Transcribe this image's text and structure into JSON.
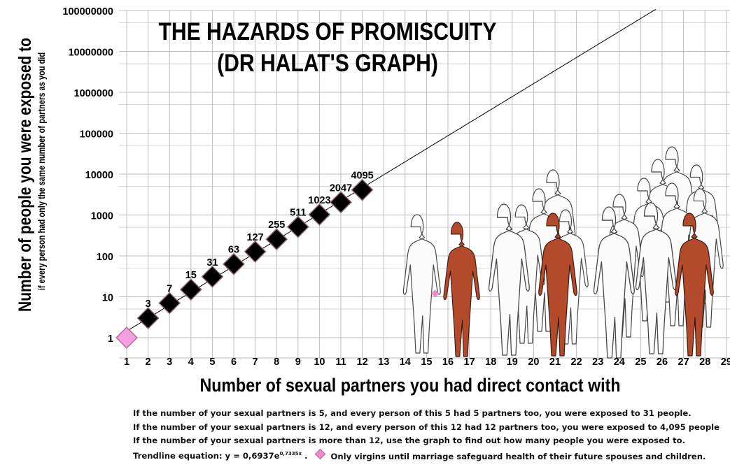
{
  "chart_data": {
    "type": "scatter",
    "title_lines": [
      "THE HAZARDS OF PROMISCUITY",
      "(DR HALAT'S GRAPH)"
    ],
    "xlabel": "Number of sexual partners you had direct contact with",
    "ylabel_main": "Number of people you were exposed to",
    "ylabel_sub": "if every person had only  the same number of partners as you did",
    "x_ticks": [
      1,
      2,
      3,
      4,
      5,
      6,
      7,
      8,
      9,
      10,
      11,
      12,
      13,
      14,
      15,
      16,
      17,
      18,
      19,
      20,
      21,
      22,
      23,
      24,
      25,
      26,
      27,
      28,
      29
    ],
    "y_ticks": [
      "1",
      "10",
      "100",
      "1000",
      "10000",
      "100000",
      "1000000",
      "10000000",
      "100000000"
    ],
    "y_scale": "log",
    "xlim": [
      1,
      29
    ],
    "ylim": [
      1,
      100000000
    ],
    "grid": true,
    "points": [
      {
        "x": 1,
        "y": 1,
        "label": ""
      },
      {
        "x": 2,
        "y": 3,
        "label": "3"
      },
      {
        "x": 3,
        "y": 7,
        "label": "7"
      },
      {
        "x": 4,
        "y": 15,
        "label": "15"
      },
      {
        "x": 5,
        "y": 31,
        "label": "31"
      },
      {
        "x": 6,
        "y": 63,
        "label": "63"
      },
      {
        "x": 7,
        "y": 127,
        "label": "127"
      },
      {
        "x": 8,
        "y": 255,
        "label": "255"
      },
      {
        "x": 9,
        "y": 511,
        "label": "511"
      },
      {
        "x": 10,
        "y": 1023,
        "label": "1023"
      },
      {
        "x": 11,
        "y": 2047,
        "label": "2047"
      },
      {
        "x": 12,
        "y": 4095,
        "label": "4095"
      }
    ],
    "extra_marker": {
      "x": 15.4,
      "y": 12
    },
    "trendline": {
      "a": 0.6937,
      "b": 0.7335,
      "type": "exponential"
    },
    "colors": {
      "point": "#000000",
      "first_point": "#f4a0e0",
      "grid": "#bdbdbd",
      "figure_red": "#b44a2c"
    }
  },
  "notes": [
    "If the number of your sexual partners is 5, and every person of this 5 had 5 partners too, you were exposed to 31 people.",
    "If the number of your sexual partners is 12, and every person of this 12  had 12 partners too, you were exposed to 4,095 people",
    "If the number of your sexual partners is more than 12, use the graph to find out how many people you were exposed to."
  ],
  "trend_note": {
    "prefix": "Trendline equation:  y = 0,6937e",
    "exponent": "0,7335x",
    "suffix": " .",
    "legend": "Only virgins until marriage safeguard health of their future spouses and children."
  }
}
